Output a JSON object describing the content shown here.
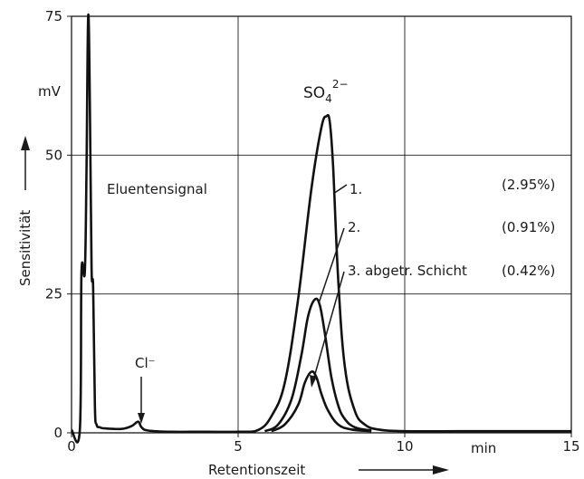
{
  "chart_data": {
    "type": "line",
    "xlabel": "Retentionszeit",
    "ylabel": "Sensitivität",
    "x_unit": "min",
    "y_unit": "mV",
    "xlim": [
      0,
      15
    ],
    "ylim": [
      0,
      75
    ],
    "x_ticks": [
      "0",
      "5",
      "10",
      "15"
    ],
    "y_ticks": [
      "0",
      "25",
      "50",
      "75"
    ],
    "grid": true,
    "peak_labels": {
      "sulfate": "SO",
      "sulfate_sub": "4",
      "sulfate_sup": "2−",
      "chloride": "Cl⁻",
      "eluent": "Eluentensignal"
    },
    "series": [
      {
        "name": "1.",
        "percent": "(2.95%)",
        "x": [
          0,
          0.25,
          0.3,
          0.4,
          0.45,
          0.5,
          0.55,
          0.6,
          0.65,
          0.7,
          0.75,
          0.85,
          1.0,
          1.5,
          1.8,
          2.0,
          2.1,
          2.3,
          3.0,
          4.0,
          5.0,
          5.6,
          6.0,
          6.4,
          6.8,
          7.2,
          7.5,
          7.65,
          7.75,
          7.85,
          8.0,
          8.2,
          8.5,
          8.8,
          9.2,
          10.0,
          12.0,
          15.0
        ],
        "y": [
          0.5,
          0.6,
          29,
          29,
          48,
          75,
          60,
          30,
          26,
          5,
          1.5,
          1.0,
          0.8,
          0.7,
          1.2,
          2.0,
          1.0,
          0.4,
          0.2,
          0.2,
          0.2,
          0.5,
          3,
          9,
          24,
          44,
          55,
          57,
          56,
          48,
          28,
          12,
          4,
          1.5,
          0.6,
          0.3,
          0.3,
          0.3
        ]
      },
      {
        "name": "2.",
        "percent": "(0.91%)",
        "x": [
          5.8,
          6.2,
          6.6,
          6.9,
          7.1,
          7.3,
          7.45,
          7.6,
          7.8,
          8.0,
          8.2,
          8.5,
          9.0
        ],
        "y": [
          0.3,
          1.5,
          6,
          14,
          21,
          24,
          23,
          18,
          10,
          5,
          2.5,
          1.0,
          0.4
        ]
      },
      {
        "name": "3. abgetr. Schicht",
        "percent": "(0.42%)",
        "x": [
          6.0,
          6.4,
          6.8,
          7.0,
          7.2,
          7.35,
          7.5,
          7.7,
          8.0,
          8.4,
          9.0
        ],
        "y": [
          0.3,
          1.5,
          5,
          9,
          11,
          10,
          7,
          4,
          1.5,
          0.6,
          0.3
        ]
      }
    ]
  }
}
